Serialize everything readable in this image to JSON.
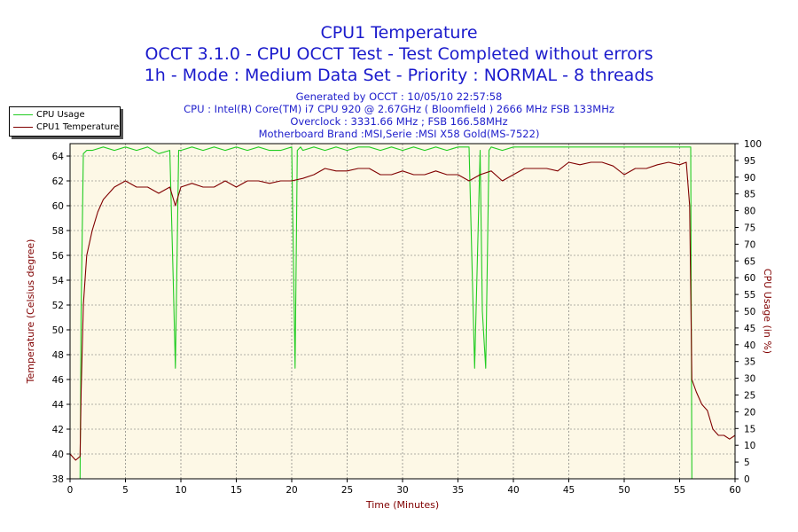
{
  "chart_data": {
    "type": "line",
    "title": "CPU1 Temperature",
    "subtitle_1": "OCCT 3.1.0 - CPU OCCT Test - Test Completed without errors",
    "subtitle_2": "1h - Mode : Medium Data Set - Priority : NORMAL - 8 threads",
    "info": [
      "Generated by OCCT : 10/05/10 22:57:58",
      "CPU : Intel(R) Core(TM) i7 CPU 920 @ 2.67GHz ( Bloomfield ) 2666 MHz FSB 133MHz",
      "Overclock : 3331.66 MHz ; FSB 166.58MHz",
      "Motherboard Brand :MSI,Serie :MSI X58 Gold(MS-7522)"
    ],
    "xlabel": "Time (Minutes)",
    "ylabel_left": "Temperature (Celsius degree)",
    "ylabel_right": "CPU Usage (in %)",
    "xlim": [
      0,
      60
    ],
    "ylim_left": [
      38,
      65
    ],
    "ylim_right": [
      0,
      100
    ],
    "x_ticks": [
      "0",
      "5",
      "10",
      "15",
      "20",
      "25",
      "30",
      "35",
      "40",
      "45",
      "50",
      "55",
      "60"
    ],
    "y_ticks_left": [
      "38",
      "40",
      "42",
      "44",
      "46",
      "48",
      "50",
      "52",
      "54",
      "56",
      "58",
      "60",
      "62",
      "64"
    ],
    "y_ticks_right": [
      "0",
      "5",
      "10",
      "15",
      "20",
      "25",
      "30",
      "35",
      "40",
      "45",
      "50",
      "55",
      "60",
      "65",
      "70",
      "75",
      "80",
      "85",
      "90",
      "95",
      "100"
    ],
    "grid": true,
    "legend_position": "top-left outside",
    "colors": {
      "cpu_usage": "#22cc22",
      "cpu_temp": "#800000",
      "title": "#1a1acc",
      "plot_bg": "#fdf8e6"
    },
    "series": [
      {
        "name": "CPU Usage",
        "axis": "right",
        "x": [
          0,
          0.9,
          1.0,
          1.2,
          1.5,
          2,
          3,
          4,
          5,
          6,
          7,
          8,
          9,
          9.3,
          9.5,
          9.8,
          10,
          11,
          12,
          13,
          14,
          15,
          16,
          17,
          18,
          19,
          20,
          20.3,
          20.5,
          20.8,
          21,
          22,
          23,
          24,
          25,
          26,
          27,
          28,
          29,
          30,
          31,
          32,
          33,
          34,
          35,
          36,
          36.5,
          37,
          37.2,
          37.5,
          37.8,
          38,
          39,
          40,
          41,
          42,
          43,
          44,
          45,
          46,
          47,
          48,
          49,
          50,
          51,
          52,
          53,
          54,
          55,
          55.8,
          56.0,
          56.1,
          57,
          58,
          59,
          60
        ],
        "values": [
          0,
          0,
          50,
          97,
          98,
          98,
          99,
          98,
          99,
          98,
          99,
          97,
          98,
          60,
          33,
          98,
          98,
          99,
          98,
          99,
          98,
          99,
          98,
          99,
          98,
          98,
          99,
          33,
          98,
          99,
          98,
          99,
          98,
          99,
          98,
          99,
          99,
          98,
          99,
          98,
          99,
          98,
          99,
          98,
          99,
          99,
          33,
          98,
          50,
          33,
          98,
          99,
          98,
          99,
          99,
          99,
          99,
          99,
          99,
          99,
          99,
          99,
          99,
          99,
          99,
          99,
          99,
          99,
          99,
          99,
          99,
          0,
          0,
          0,
          0,
          0
        ]
      },
      {
        "name": "CPU1 Temperature",
        "axis": "left",
        "x": [
          0,
          0.5,
          0.9,
          1.0,
          1.2,
          1.5,
          2,
          2.5,
          3,
          3.5,
          4,
          5,
          6,
          7,
          8,
          9,
          9.5,
          10,
          11,
          12,
          13,
          14,
          15,
          16,
          17,
          18,
          19,
          20,
          21,
          22,
          23,
          24,
          25,
          26,
          27,
          28,
          29,
          30,
          31,
          32,
          33,
          34,
          35,
          36,
          37,
          38,
          39,
          40,
          41,
          42,
          43,
          44,
          45,
          46,
          47,
          48,
          49,
          50,
          51,
          52,
          53,
          54,
          55,
          55.6,
          55.9,
          56.1,
          56.5,
          57,
          57.5,
          58,
          58.5,
          59,
          59.5,
          60
        ],
        "values": [
          40,
          39.5,
          39.8,
          45,
          52,
          56,
          58,
          59.5,
          60.5,
          61,
          61.5,
          62,
          61.5,
          61.5,
          61,
          61.5,
          60,
          61.5,
          61.8,
          61.5,
          61.5,
          62,
          61.5,
          62,
          62,
          61.8,
          62,
          62,
          62.2,
          62.5,
          63,
          62.8,
          62.8,
          63,
          63,
          62.5,
          62.5,
          62.8,
          62.5,
          62.5,
          62.8,
          62.5,
          62.5,
          62,
          62.5,
          62.8,
          62,
          62.5,
          63,
          63,
          63,
          62.8,
          63.5,
          63.3,
          63.5,
          63.5,
          63.2,
          62.5,
          63,
          63,
          63.3,
          63.5,
          63.3,
          63.5,
          60,
          46,
          45,
          44,
          43.5,
          42,
          41.5,
          41.5,
          41.2,
          41.5
        ]
      }
    ]
  }
}
